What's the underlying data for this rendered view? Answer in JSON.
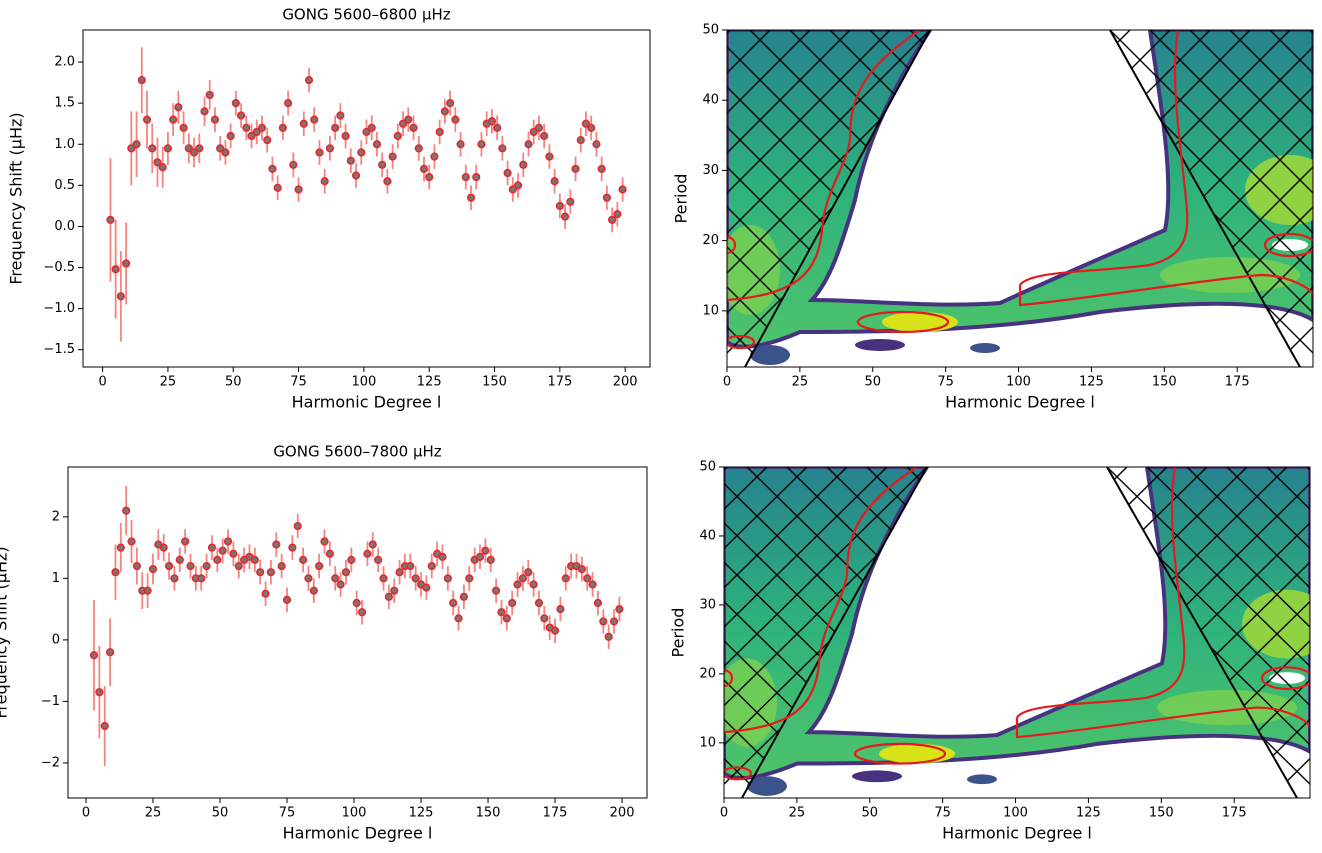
{
  "chart_data": [
    {
      "type": "scatter",
      "title": "GONG 5600–6800 μHz",
      "xlabel": "Harmonic Degree l",
      "ylabel": "Frequency Shift (μHz)",
      "xlim": [
        -7.5,
        209.5
      ],
      "ylim": [
        -1.71,
        2.39
      ],
      "xticks": [
        0,
        25,
        50,
        75,
        100,
        125,
        150,
        175,
        200
      ],
      "yticks": [
        {
          "value": -1.5,
          "label": "−1.5"
        },
        {
          "value": -1,
          "label": "−1.0"
        },
        {
          "value": -0.5,
          "label": "−0.5"
        },
        {
          "value": 0,
          "label": "0.0"
        },
        0.5,
        {
          "value": 1,
          "label": "1.0"
        },
        1.5,
        {
          "value": 2,
          "label": "2.0"
        }
      ],
      "x": [
        3,
        5,
        7,
        9,
        11,
        13,
        15,
        17,
        19,
        21,
        23,
        25,
        27,
        29,
        31,
        33,
        35,
        37,
        39,
        41,
        43,
        45,
        47,
        49,
        51,
        53,
        55,
        57,
        59,
        61,
        63,
        65,
        67,
        69,
        71,
        73,
        75,
        77,
        79,
        81,
        83,
        85,
        87,
        89,
        91,
        93,
        95,
        97,
        99,
        101,
        103,
        105,
        107,
        109,
        111,
        113,
        115,
        117,
        119,
        121,
        123,
        125,
        127,
        129,
        131,
        133,
        135,
        137,
        139,
        141,
        143,
        145,
        147,
        149,
        151,
        153,
        155,
        157,
        159,
        161,
        163,
        165,
        167,
        169,
        171,
        173,
        175,
        177,
        179,
        181,
        183,
        185,
        187,
        189,
        191,
        193,
        195,
        197,
        199
      ],
      "series": [
        {
          "color": "#e8272b",
          "error_color": "#f4847f",
          "values": [
            0.08,
            -0.52,
            -0.85,
            -0.45,
            0.95,
            1.0,
            1.78,
            1.3,
            0.95,
            0.78,
            0.72,
            0.95,
            1.3,
            1.45,
            1.2,
            0.95,
            0.9,
            0.95,
            1.4,
            1.6,
            1.3,
            0.95,
            0.9,
            1.1,
            1.5,
            1.35,
            1.2,
            1.1,
            1.15,
            1.2,
            1.05,
            0.7,
            0.47,
            1.2,
            1.5,
            0.75,
            0.45,
            1.25,
            1.78,
            1.3,
            0.9,
            0.55,
            0.95,
            1.2,
            1.35,
            1.1,
            0.8,
            0.62,
            0.9,
            1.15,
            1.2,
            1.0,
            0.75,
            0.55,
            0.85,
            1.1,
            1.25,
            1.3,
            1.2,
            0.95,
            0.7,
            0.6,
            0.85,
            1.15,
            1.4,
            1.5,
            1.3,
            1.0,
            0.6,
            0.35,
            0.6,
            1.0,
            1.25,
            1.28,
            1.2,
            0.95,
            0.65,
            0.45,
            0.5,
            0.75,
            1.0,
            1.15,
            1.2,
            1.1,
            0.85,
            0.55,
            0.25,
            0.12,
            0.3,
            0.7,
            1.05,
            1.25,
            1.2,
            1.0,
            0.7,
            0.35,
            0.08,
            0.15,
            0.45
          ],
          "errors": [
            0.75,
            0.6,
            0.55,
            0.5,
            0.45,
            0.4,
            0.4,
            0.35,
            0.3,
            0.3,
            0.25,
            0.2,
            0.2,
            0.2,
            0.2,
            0.18,
            0.18,
            0.18,
            0.18,
            0.18,
            0.15,
            0.15,
            0.15,
            0.15,
            0.15,
            0.15,
            0.15,
            0.15,
            0.15,
            0.15,
            0.15,
            0.15,
            0.15,
            0.15,
            0.15,
            0.15,
            0.15,
            0.15,
            0.15,
            0.15,
            0.15,
            0.15,
            0.15,
            0.15,
            0.15,
            0.15,
            0.15,
            0.15,
            0.15,
            0.15,
            0.15,
            0.15,
            0.15,
            0.15,
            0.15,
            0.15,
            0.15,
            0.15,
            0.15,
            0.15,
            0.15,
            0.15,
            0.15,
            0.15,
            0.15,
            0.15,
            0.15,
            0.15,
            0.15,
            0.15,
            0.15,
            0.15,
            0.15,
            0.15,
            0.15,
            0.15,
            0.15,
            0.15,
            0.15,
            0.15,
            0.15,
            0.15,
            0.15,
            0.15,
            0.15,
            0.15,
            0.15,
            0.15,
            0.15,
            0.15,
            0.15,
            0.15,
            0.15,
            0.15,
            0.15,
            0.15,
            0.15,
            0.15,
            0.15
          ]
        }
      ]
    },
    {
      "type": "heatmap",
      "xlabel": "Harmonic Degree l",
      "ylabel": "Period",
      "xlim": [
        0,
        201
      ],
      "ylim": [
        2,
        50
      ],
      "xticks": [
        0,
        25,
        50,
        75,
        100,
        125,
        150,
        175
      ],
      "yticks": [
        10,
        20,
        30,
        40,
        50
      ]
    },
    {
      "type": "scatter",
      "title": "GONG 5600–7800 μHz",
      "xlabel": "Harmonic Degree l",
      "ylabel": "Frequency Shift (μHz)",
      "xlim": [
        -6.7,
        209.3
      ],
      "ylim": [
        -2.57,
        2.81
      ],
      "xticks": [
        0,
        25,
        50,
        75,
        100,
        125,
        150,
        175,
        200
      ],
      "yticks": [
        {
          "value": -2,
          "label": "−2"
        },
        {
          "value": -1,
          "label": "−1"
        },
        0,
        1,
        2
      ],
      "x": [
        3,
        5,
        7,
        9,
        11,
        13,
        15,
        17,
        19,
        21,
        23,
        25,
        27,
        29,
        31,
        33,
        35,
        37,
        39,
        41,
        43,
        45,
        47,
        49,
        51,
        53,
        55,
        57,
        59,
        61,
        63,
        65,
        67,
        69,
        71,
        73,
        75,
        77,
        79,
        81,
        83,
        85,
        87,
        89,
        91,
        93,
        95,
        97,
        99,
        101,
        103,
        105,
        107,
        109,
        111,
        113,
        115,
        117,
        119,
        121,
        123,
        125,
        127,
        129,
        131,
        133,
        135,
        137,
        139,
        141,
        143,
        145,
        147,
        149,
        151,
        153,
        155,
        157,
        159,
        161,
        163,
        165,
        167,
        169,
        171,
        173,
        175,
        177,
        179,
        181,
        183,
        185,
        187,
        189,
        191,
        193,
        195,
        197,
        199
      ],
      "series": [
        {
          "color": "#e8272b",
          "error_color": "#f4847f",
          "values": [
            -0.25,
            -0.85,
            -1.4,
            -0.2,
            1.1,
            1.5,
            2.1,
            1.6,
            1.2,
            0.8,
            0.8,
            1.15,
            1.55,
            1.5,
            1.2,
            1.0,
            1.3,
            1.6,
            1.2,
            1.0,
            1.0,
            1.2,
            1.5,
            1.3,
            1.45,
            1.6,
            1.4,
            1.2,
            1.3,
            1.35,
            1.3,
            1.1,
            0.75,
            1.1,
            1.55,
            1.2,
            0.65,
            1.5,
            1.85,
            1.3,
            1.0,
            0.8,
            1.2,
            1.6,
            1.4,
            1.0,
            0.9,
            1.1,
            1.3,
            0.6,
            0.45,
            1.4,
            1.55,
            1.3,
            1.0,
            0.7,
            0.8,
            1.1,
            1.2,
            1.2,
            1.0,
            0.9,
            0.85,
            1.2,
            1.4,
            1.35,
            1.0,
            0.6,
            0.35,
            0.7,
            1.0,
            1.3,
            1.35,
            1.45,
            1.3,
            0.8,
            0.45,
            0.35,
            0.6,
            0.9,
            1.0,
            1.1,
            0.9,
            0.6,
            0.35,
            0.2,
            0.15,
            0.5,
            1.0,
            1.2,
            1.2,
            1.15,
            1.0,
            0.9,
            0.6,
            0.3,
            0.05,
            0.3,
            0.5
          ],
          "errors": [
            0.9,
            0.75,
            0.65,
            0.55,
            0.45,
            0.4,
            0.4,
            0.35,
            0.3,
            0.3,
            0.28,
            0.25,
            0.25,
            0.22,
            0.22,
            0.2,
            0.2,
            0.2,
            0.2,
            0.2,
            0.2,
            0.2,
            0.2,
            0.2,
            0.2,
            0.2,
            0.2,
            0.2,
            0.2,
            0.2,
            0.2,
            0.2,
            0.2,
            0.2,
            0.2,
            0.2,
            0.2,
            0.2,
            0.2,
            0.2,
            0.2,
            0.2,
            0.2,
            0.2,
            0.2,
            0.2,
            0.2,
            0.2,
            0.2,
            0.2,
            0.2,
            0.2,
            0.2,
            0.2,
            0.2,
            0.2,
            0.2,
            0.2,
            0.2,
            0.2,
            0.2,
            0.2,
            0.2,
            0.2,
            0.2,
            0.2,
            0.2,
            0.2,
            0.2,
            0.2,
            0.2,
            0.2,
            0.2,
            0.2,
            0.2,
            0.2,
            0.2,
            0.2,
            0.2,
            0.2,
            0.2,
            0.2,
            0.2,
            0.2,
            0.2,
            0.2,
            0.2,
            0.2,
            0.2,
            0.2,
            0.2,
            0.2,
            0.2,
            0.2,
            0.2,
            0.2,
            0.2,
            0.2,
            0.2
          ]
        }
      ]
    },
    {
      "type": "heatmap",
      "xlabel": "Harmonic Degree l",
      "ylabel": "Period",
      "xlim": [
        0,
        201
      ],
      "ylim": [
        2,
        50
      ],
      "xticks": [
        0,
        25,
        50,
        75,
        100,
        125,
        150,
        175
      ],
      "yticks": [
        10,
        20,
        30,
        40,
        50
      ]
    }
  ]
}
